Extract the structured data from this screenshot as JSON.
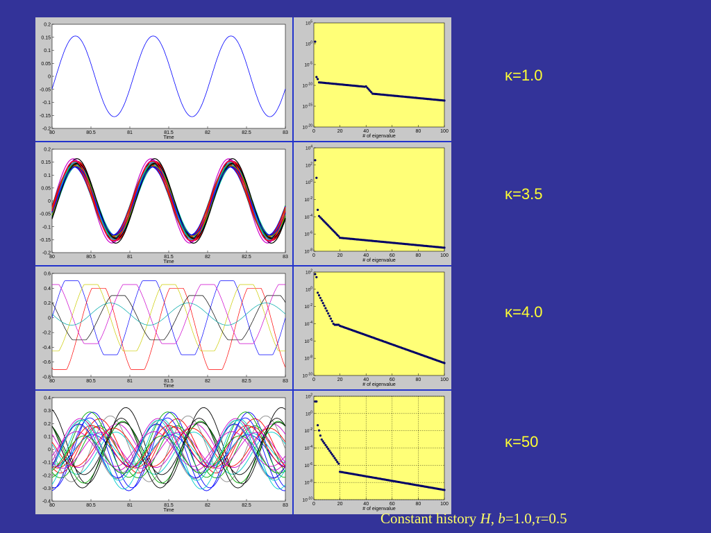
{
  "colors": {
    "background": "#333399",
    "accent": "#ffff33",
    "plot_bg": "#ffff77",
    "dots": "#000066"
  },
  "kappa_labels": [
    "κ=1.0",
    "κ=3.5",
    "κ=4.0",
    "κ=50"
  ],
  "caption": {
    "prefix": "Constant history ",
    "H": "H",
    "sep": ", ",
    "b": "b",
    "b_val": "=1.0,",
    "tau": "τ",
    "tau_val": "=0.5"
  },
  "chart_data": [
    {
      "type": "line",
      "panel": "time-1",
      "xlabel": "Time",
      "xlim": [
        80,
        83
      ],
      "ylim": [
        -0.2,
        0.2
      ],
      "xticks": [
        "80",
        "80.5",
        "81",
        "81.5",
        "82",
        "82.5",
        "83"
      ],
      "yticks": [
        "0.2",
        "0.15",
        "0.1",
        "0.05",
        "0",
        "-0.05",
        "-0.1",
        "-0.15",
        "-0.2"
      ],
      "series": [
        {
          "amplitude": 0.155,
          "period": 1.0,
          "peak_x": 80.3,
          "color": "#0000ff"
        }
      ]
    },
    {
      "type": "eigen",
      "panel": "eig-1",
      "xlabel": "# of eigenvalue",
      "xlim": [
        0,
        100
      ],
      "yticks": [
        "10^5",
        "10^0",
        "10^-5",
        "10^-10",
        "10^-15",
        "10^-20"
      ],
      "grid": false,
      "points_desc": "first eigenvalue ≈1e1, drop to ≈1e-9, step at 40, decay to ≈1e-15"
    },
    {
      "type": "line",
      "panel": "time-2",
      "xlabel": "Time",
      "xlim": [
        80,
        83
      ],
      "ylim": [
        -0.2,
        0.2
      ],
      "xticks": [
        "80",
        "80.5",
        "81",
        "81.5",
        "82",
        "82.5",
        "83"
      ],
      "yticks": [
        "0.2",
        "0.15",
        "0.1",
        "0.05",
        "0",
        "-0.05",
        "-0.1",
        "-0.15",
        "-0.2"
      ]
    },
    {
      "type": "eigen",
      "panel": "eig-2",
      "xlabel": "# of eigenvalue",
      "xlim": [
        0,
        100
      ],
      "yticks": [
        "10^4",
        "10^2",
        "10^0",
        "10^-2",
        "10^-4",
        "10^-6",
        "10^-8"
      ],
      "grid": false
    },
    {
      "type": "line",
      "panel": "time-3",
      "xlabel": "Time",
      "xlim": [
        80,
        83
      ],
      "ylim": [
        -0.8,
        0.6
      ],
      "xticks": [
        "80",
        "80.5",
        "81",
        "81.5",
        "82",
        "82.5",
        "83"
      ],
      "yticks": [
        "0.6",
        "0.4",
        "0.2",
        "0",
        "-0.2",
        "-0.4",
        "-0.6",
        "-0.8"
      ]
    },
    {
      "type": "eigen",
      "panel": "eig-3",
      "xlabel": "# of eigenvalue",
      "xlim": [
        0,
        100
      ],
      "yticks": [
        "10^2",
        "10^0",
        "10^-2",
        "10^-4",
        "10^-6",
        "10^-8",
        "10^-10"
      ],
      "grid": false
    },
    {
      "type": "line",
      "panel": "time-4",
      "xlabel": "Time",
      "xlim": [
        80,
        83
      ],
      "ylim": [
        -0.4,
        0.4
      ],
      "xticks": [
        "80",
        "80.5",
        "81",
        "81.5",
        "82",
        "82.5",
        "83"
      ],
      "yticks": [
        "0.4",
        "0.3",
        "0.2",
        "0.1",
        "0",
        "-0.1",
        "-0.2",
        "-0.3",
        "-0.4"
      ]
    },
    {
      "type": "eigen",
      "panel": "eig-4",
      "xlabel": "# of eigenvalue",
      "xlim": [
        0,
        100
      ],
      "yticks": [
        "10^2",
        "10^0",
        "10^-2",
        "10^-4",
        "10^-6",
        "10^-8",
        "10^-10"
      ],
      "grid": true
    }
  ]
}
